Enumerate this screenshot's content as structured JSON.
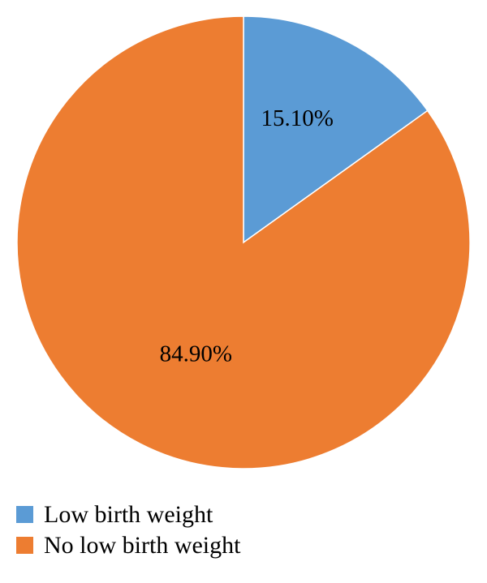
{
  "chart_data": {
    "type": "pie",
    "title": "",
    "categories": [
      "Low birth weight",
      "No low birth weight"
    ],
    "values": [
      15.1,
      84.9
    ],
    "data_labels": [
      "15.10%",
      "84.90%"
    ],
    "colors": [
      "#5b9bd5",
      "#ed7d31"
    ],
    "start_angle": "12 o'clock",
    "direction": "clockwise",
    "legend": {
      "position": "bottom-left",
      "items": [
        {
          "label": "Low birth weight",
          "color": "#5b9bd5"
        },
        {
          "label": "No low birth weight",
          "color": "#ed7d31"
        }
      ]
    }
  }
}
